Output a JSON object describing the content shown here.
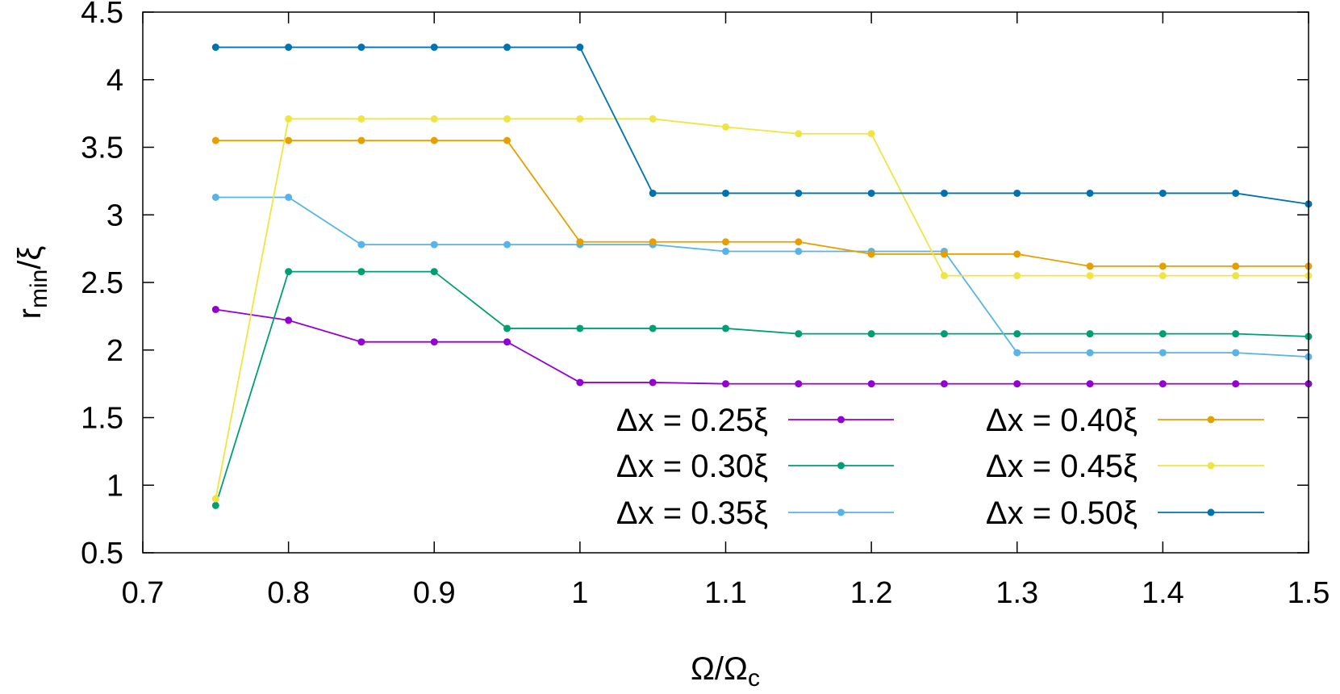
{
  "chart_data": {
    "type": "line",
    "xlabel": {
      "main": "Ω/Ω",
      "sub": "c"
    },
    "ylabel": {
      "main": "r",
      "sub": "min",
      "tail": "/ξ"
    },
    "xlim": [
      0.7,
      1.5
    ],
    "ylim": [
      0.5,
      4.5
    ],
    "xticks": [
      0.7,
      0.8,
      0.9,
      1.0,
      1.1,
      1.2,
      1.3,
      1.4,
      1.5
    ],
    "xtick_labels": [
      "0.7",
      "0.8",
      "0.9",
      "1",
      "1.1",
      "1.2",
      "1.3",
      "1.4",
      "1.5"
    ],
    "yticks": [
      0.5,
      1.0,
      1.5,
      2.0,
      2.5,
      3.0,
      3.5,
      4.0,
      4.5
    ],
    "ytick_labels": [
      "0.5",
      "1",
      "1.5",
      "2",
      "2.5",
      "3",
      "3.5",
      "4",
      "4.5"
    ],
    "grid": false,
    "legend_position": "bottom-right, two columns",
    "x": [
      0.75,
      0.8,
      0.85,
      0.9,
      0.95,
      1.0,
      1.05,
      1.1,
      1.15,
      1.2,
      1.25,
      1.3,
      1.35,
      1.4,
      1.45,
      1.5
    ],
    "series": [
      {
        "name": "Δx = 0.25ξ",
        "color": "#9400d3",
        "values": [
          2.3,
          2.22,
          2.06,
          2.06,
          2.06,
          1.76,
          1.76,
          1.75,
          1.75,
          1.75,
          1.75,
          1.75,
          1.75,
          1.75,
          1.75,
          1.75
        ]
      },
      {
        "name": "Δx = 0.30ξ",
        "color": "#009e73",
        "values": [
          0.85,
          2.58,
          2.58,
          2.58,
          2.16,
          2.16,
          2.16,
          2.16,
          2.12,
          2.12,
          2.12,
          2.12,
          2.12,
          2.12,
          2.12,
          2.1
        ]
      },
      {
        "name": "Δx = 0.35ξ",
        "color": "#56b4e9",
        "values": [
          3.13,
          3.13,
          2.78,
          2.78,
          2.78,
          2.78,
          2.78,
          2.73,
          2.73,
          2.73,
          2.73,
          1.98,
          1.98,
          1.98,
          1.98,
          1.95
        ]
      },
      {
        "name": "Δx = 0.40ξ",
        "color": "#e69f00",
        "values": [
          3.55,
          3.55,
          3.55,
          3.55,
          3.55,
          2.8,
          2.8,
          2.8,
          2.8,
          2.71,
          2.71,
          2.71,
          2.62,
          2.62,
          2.62,
          2.62
        ]
      },
      {
        "name": "Δx = 0.45ξ",
        "color": "#f0e442",
        "values": [
          0.9,
          3.71,
          3.71,
          3.71,
          3.71,
          3.71,
          3.71,
          3.65,
          3.6,
          3.6,
          2.55,
          2.55,
          2.55,
          2.55,
          2.55,
          2.55
        ]
      },
      {
        "name": "Δx = 0.50ξ",
        "color": "#0072b2",
        "values": [
          4.24,
          4.24,
          4.24,
          4.24,
          4.24,
          4.24,
          3.16,
          3.16,
          3.16,
          3.16,
          3.16,
          3.16,
          3.16,
          3.16,
          3.16,
          3.08
        ]
      }
    ]
  }
}
